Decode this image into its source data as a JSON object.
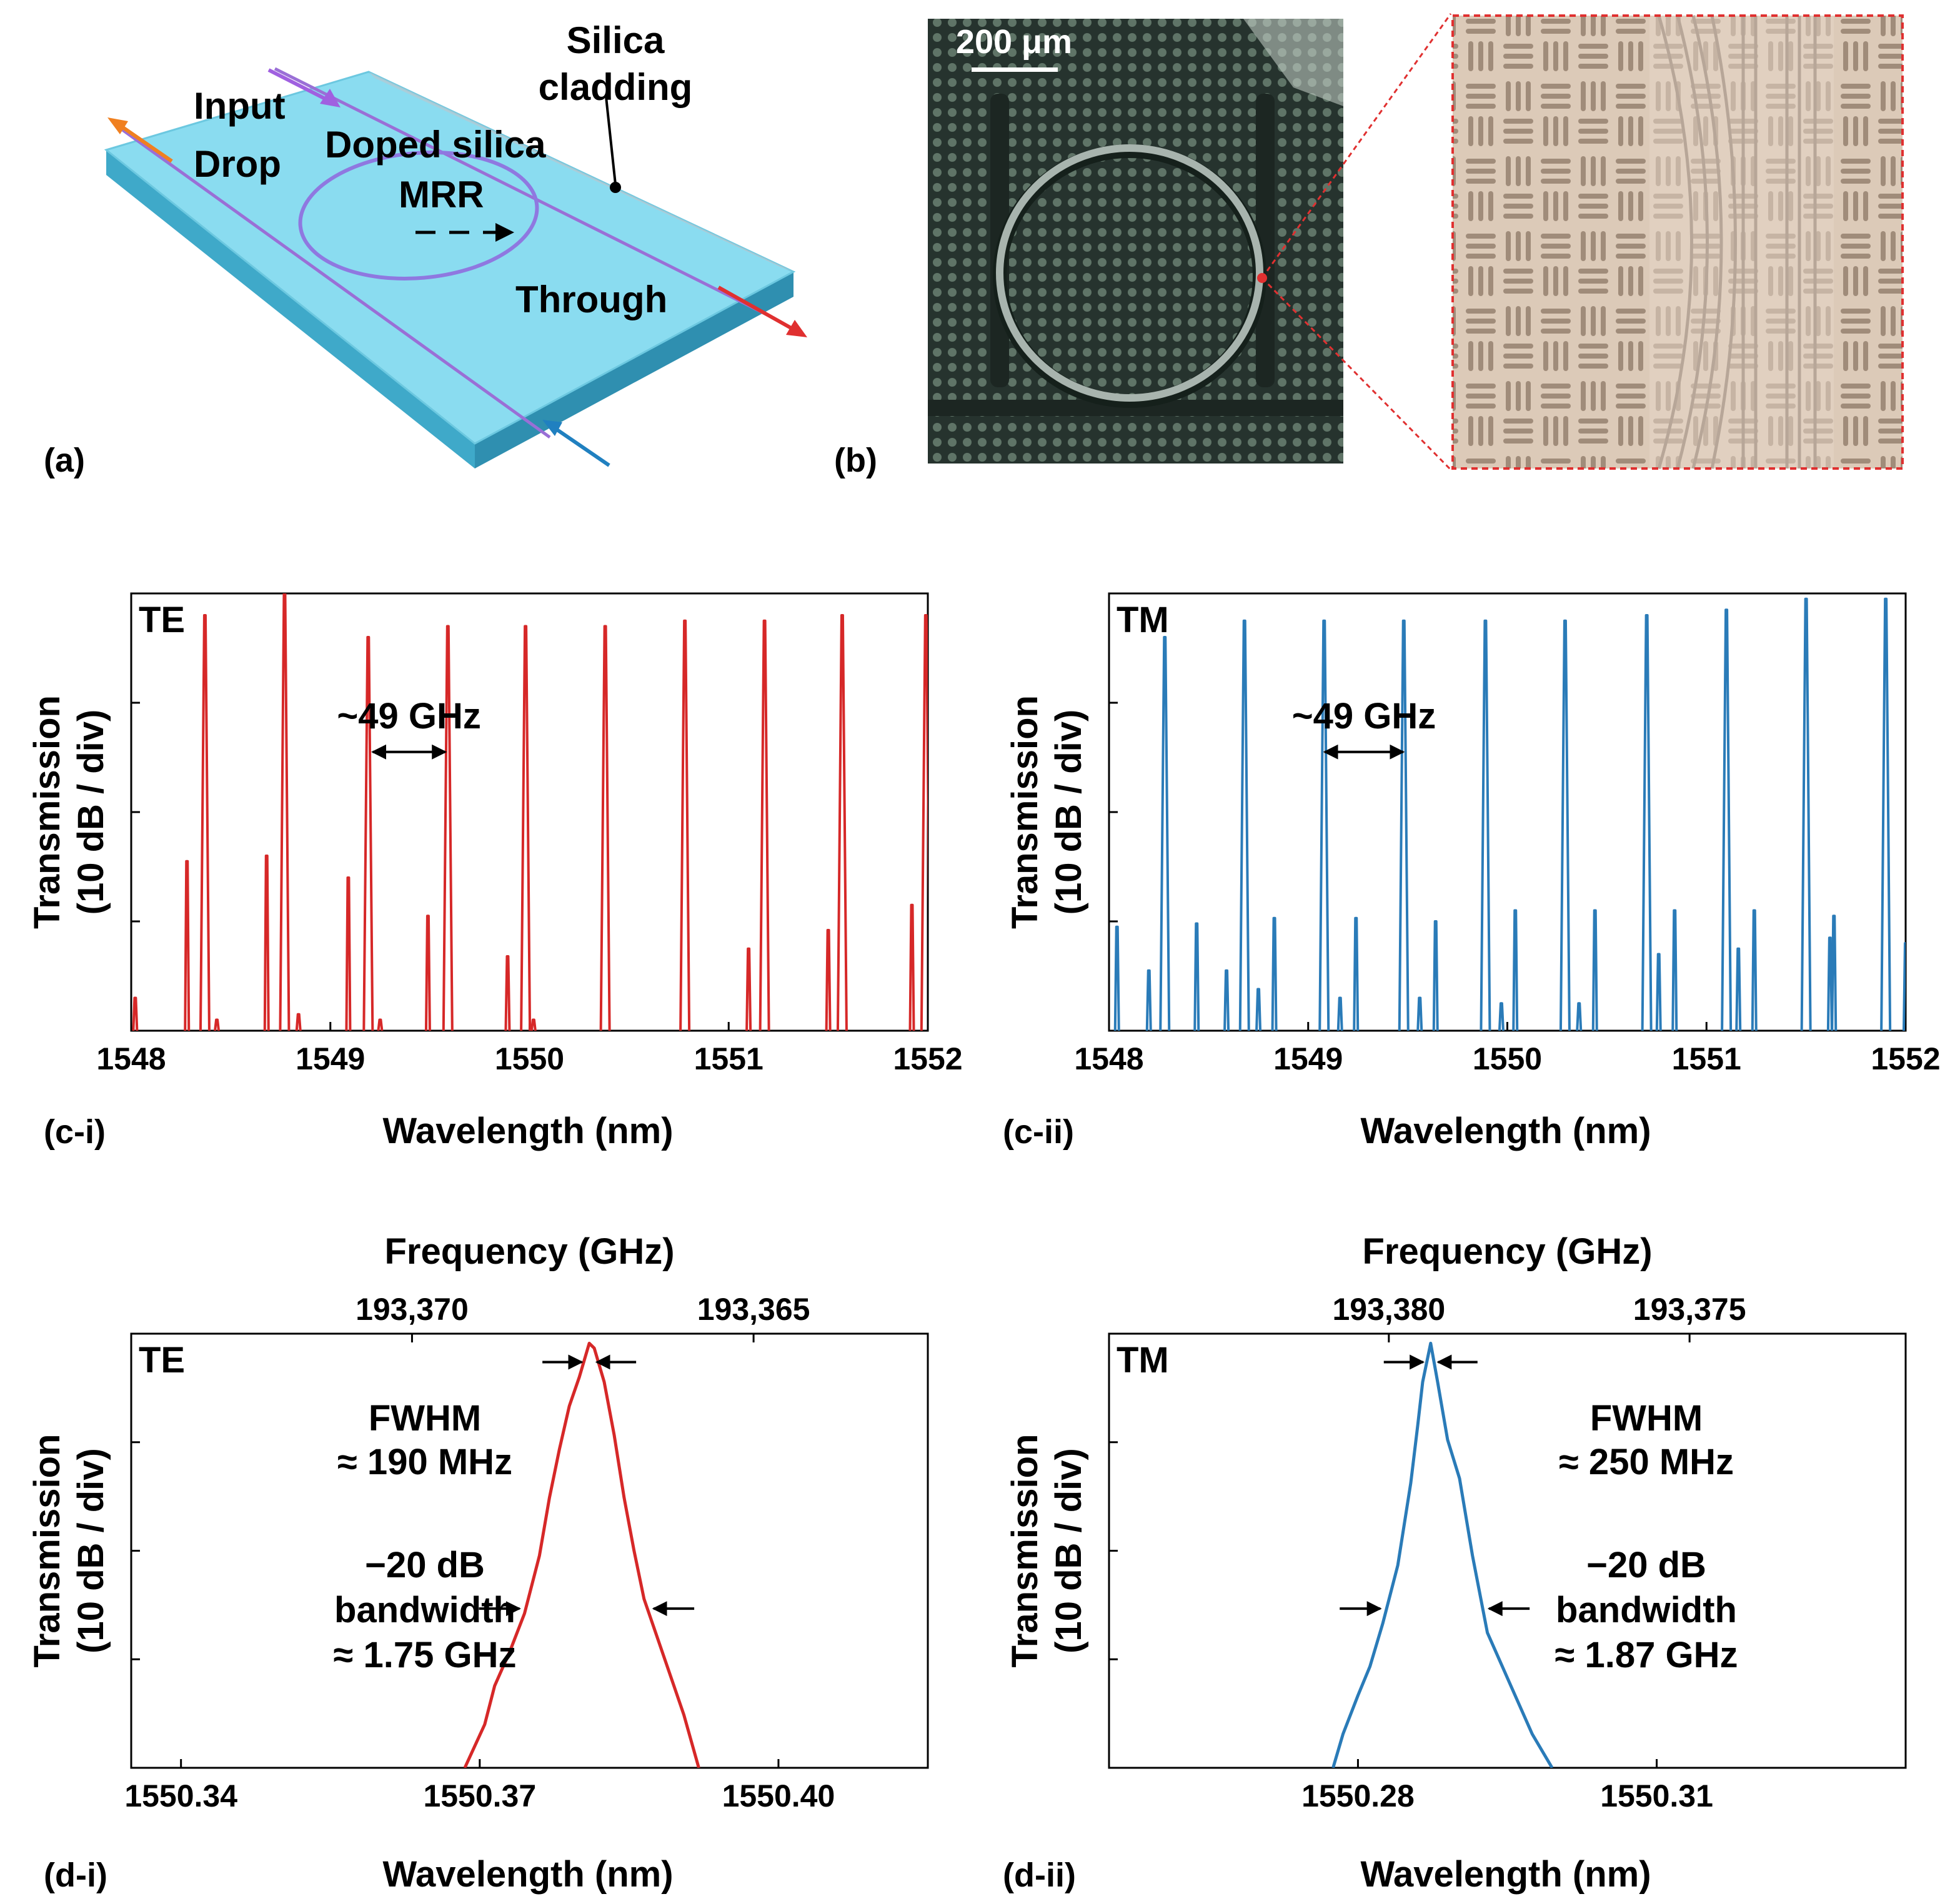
{
  "panel_a": {
    "label": "(a)",
    "silica_cladding_line1": "Silica",
    "silica_cladding_line2": "cladding",
    "input": "Input",
    "drop": "Drop",
    "doped_silica": "Doped silica",
    "mrr": "MRR",
    "through": "Through",
    "colors": {
      "slab": "#7fd7ec",
      "slab_side": "#3fa9c9",
      "waveguide": "#9a6fd6",
      "input_arrow": "#a060e0",
      "drop_arrow": "#f08020",
      "through_arrow": "#e03030",
      "add_arrow": "#2080c0"
    }
  },
  "panel_b": {
    "label": "(b)",
    "scale_bar": "200 μm",
    "colors": {
      "micrograph_bg": "#2d3a34",
      "zoom_bg": "#d8c6b4",
      "zoom_box": "#e03030"
    }
  },
  "colors": {
    "te": "#d62828",
    "tm": "#2a7bb8"
  },
  "chart_data": [
    {
      "id": "c-i",
      "type": "line",
      "panel_label": "(c-i)",
      "mode_label": "TE",
      "xlabel": "Wavelength (nm)",
      "ylabel_line1": "Transmission",
      "ylabel_line2": "(10 dB / div)",
      "xlim": [
        1548,
        1552
      ],
      "xticks": [
        "1548",
        "1549",
        "1550",
        "1551",
        "1552"
      ],
      "ylim": [
        0,
        4
      ],
      "annotation": "~49 GHz",
      "annotation_span": [
        1549.2,
        1549.59
      ],
      "main_peaks": [
        {
          "x": 1548.37,
          "y": 3.8
        },
        {
          "x": 1548.77,
          "y": 4.0
        },
        {
          "x": 1549.19,
          "y": 3.6
        },
        {
          "x": 1549.59,
          "y": 3.7
        },
        {
          "x": 1549.98,
          "y": 3.7
        },
        {
          "x": 1550.38,
          "y": 3.7
        },
        {
          "x": 1550.78,
          "y": 3.75
        },
        {
          "x": 1551.18,
          "y": 3.75
        },
        {
          "x": 1551.57,
          "y": 3.8
        },
        {
          "x": 1551.99,
          "y": 3.8
        }
      ],
      "minor_peaks": [
        {
          "x": 1548.02,
          "y": 0.3
        },
        {
          "x": 1548.28,
          "y": 1.55
        },
        {
          "x": 1548.43,
          "y": 0.1
        },
        {
          "x": 1548.68,
          "y": 1.6
        },
        {
          "x": 1548.84,
          "y": 0.15
        },
        {
          "x": 1549.09,
          "y": 1.4
        },
        {
          "x": 1549.25,
          "y": 0.1
        },
        {
          "x": 1549.49,
          "y": 1.05
        },
        {
          "x": 1549.89,
          "y": 0.68
        },
        {
          "x": 1550.02,
          "y": 0.1
        },
        {
          "x": 1551.1,
          "y": 0.75
        },
        {
          "x": 1551.5,
          "y": 0.92
        },
        {
          "x": 1551.92,
          "y": 1.15
        }
      ]
    },
    {
      "id": "c-ii",
      "type": "line",
      "panel_label": "(c-ii)",
      "mode_label": "TM",
      "xlabel": "Wavelength (nm)",
      "ylabel_line1": "Transmission",
      "ylabel_line2": "(10 dB / div)",
      "xlim": [
        1548,
        1552
      ],
      "xticks": [
        "1548",
        "1549",
        "1550",
        "1551",
        "1552"
      ],
      "ylim": [
        0,
        4
      ],
      "annotation": "~49 GHz",
      "annotation_span": [
        1549.07,
        1549.49
      ],
      "main_peaks": [
        {
          "x": 1548.28,
          "y": 3.6
        },
        {
          "x": 1548.68,
          "y": 3.75
        },
        {
          "x": 1549.08,
          "y": 3.75
        },
        {
          "x": 1549.48,
          "y": 3.75
        },
        {
          "x": 1549.89,
          "y": 3.75
        },
        {
          "x": 1550.29,
          "y": 3.75
        },
        {
          "x": 1550.7,
          "y": 3.8
        },
        {
          "x": 1551.1,
          "y": 3.85
        },
        {
          "x": 1551.5,
          "y": 3.95
        },
        {
          "x": 1551.9,
          "y": 3.95
        }
      ],
      "minor_peaks": [
        {
          "x": 1548.04,
          "y": 0.95
        },
        {
          "x": 1548.2,
          "y": 0.55
        },
        {
          "x": 1548.44,
          "y": 0.98
        },
        {
          "x": 1548.59,
          "y": 0.55
        },
        {
          "x": 1548.83,
          "y": 1.03
        },
        {
          "x": 1548.75,
          "y": 0.38
        },
        {
          "x": 1549.24,
          "y": 1.03
        },
        {
          "x": 1549.16,
          "y": 0.3
        },
        {
          "x": 1549.64,
          "y": 1.0
        },
        {
          "x": 1549.56,
          "y": 0.3
        },
        {
          "x": 1550.04,
          "y": 1.1
        },
        {
          "x": 1549.97,
          "y": 0.25
        },
        {
          "x": 1550.44,
          "y": 1.1
        },
        {
          "x": 1550.36,
          "y": 0.25
        },
        {
          "x": 1550.84,
          "y": 1.1
        },
        {
          "x": 1550.76,
          "y": 0.7
        },
        {
          "x": 1551.24,
          "y": 1.1
        },
        {
          "x": 1551.16,
          "y": 0.75
        },
        {
          "x": 1551.64,
          "y": 1.05
        },
        {
          "x": 1551.62,
          "y": 0.85
        },
        {
          "x": 1552.0,
          "y": 0.8
        }
      ]
    },
    {
      "id": "d-i",
      "type": "line",
      "panel_label": "(d-i)",
      "mode_label": "TE",
      "xlabel": "Wavelength (nm)",
      "top_xlabel": "Frequency (GHz)",
      "ylabel_line1": "Transmission",
      "ylabel_line2": "(10 dB / div)",
      "xlim": [
        1550.335,
        1550.415
      ],
      "xticks": [
        {
          "value": 1550.34,
          "label": "1550.34"
        },
        {
          "value": 1550.37,
          "label": "1550.37"
        },
        {
          "value": 1550.4,
          "label": "1550.40"
        }
      ],
      "top_xticks": [
        {
          "value": 1550.3632,
          "label": "193,370"
        },
        {
          "value": 1550.3975,
          "label": "193,365"
        }
      ],
      "ylim": [
        0,
        4.5
      ],
      "x": [
        1550.3685,
        1550.3705,
        1550.3715,
        1550.373,
        1550.3745,
        1550.376,
        1550.377,
        1550.378,
        1550.379,
        1550.38,
        1550.381,
        1550.3815,
        1550.3825,
        1550.3835,
        1550.3845,
        1550.3855,
        1550.3865,
        1550.388,
        1550.3895,
        1550.3905,
        1550.392
      ],
      "y": [
        0.0,
        0.45,
        0.85,
        1.2,
        1.6,
        2.2,
        2.8,
        3.3,
        3.75,
        4.05,
        4.4,
        4.35,
        4.0,
        3.45,
        2.8,
        2.25,
        1.75,
        1.3,
        0.85,
        0.55,
        0.0
      ],
      "fwhm_label_line1": "FWHM",
      "fwhm_label_line2": "≈ 190 MHz",
      "bw_label_line1": "−20 dB",
      "bw_label_line2": "bandwidth",
      "bw_label_line3": "≈ 1.75 GHz"
    },
    {
      "id": "d-ii",
      "type": "line",
      "panel_label": "(d-ii)",
      "mode_label": "TM",
      "xlabel": "Wavelength (nm)",
      "top_xlabel": "Frequency (GHz)",
      "ylabel_line1": "Transmission",
      "ylabel_line2": "(10 dB / div)",
      "xlim": [
        1550.255,
        1550.335
      ],
      "xticks": [
        {
          "value": 1550.28,
          "label": "1550.28"
        },
        {
          "value": 1550.31,
          "label": "1550.31"
        }
      ],
      "top_xticks": [
        {
          "value": 1550.2831,
          "label": "193,380"
        },
        {
          "value": 1550.3133,
          "label": "193,375"
        }
      ],
      "ylim": [
        0,
        4.5
      ],
      "x": [
        1550.2775,
        1550.2785,
        1550.28,
        1550.2812,
        1550.2825,
        1550.284,
        1550.2853,
        1550.286,
        1550.2865,
        1550.2873,
        1550.288,
        1550.289,
        1550.2902,
        1550.2915,
        1550.293,
        1550.2945,
        1550.296,
        1550.2975,
        1550.2995
      ],
      "y": [
        0.0,
        0.35,
        0.75,
        1.05,
        1.5,
        2.1,
        2.95,
        3.55,
        4.0,
        4.4,
        4.0,
        3.4,
        3.0,
        2.2,
        1.4,
        1.05,
        0.7,
        0.35,
        0.0
      ],
      "fwhm_label_line1": "FWHM",
      "fwhm_label_line2": "≈ 250 MHz",
      "bw_label_line1": "−20 dB",
      "bw_label_line2": "bandwidth",
      "bw_label_line3": "≈ 1.87 GHz"
    }
  ]
}
